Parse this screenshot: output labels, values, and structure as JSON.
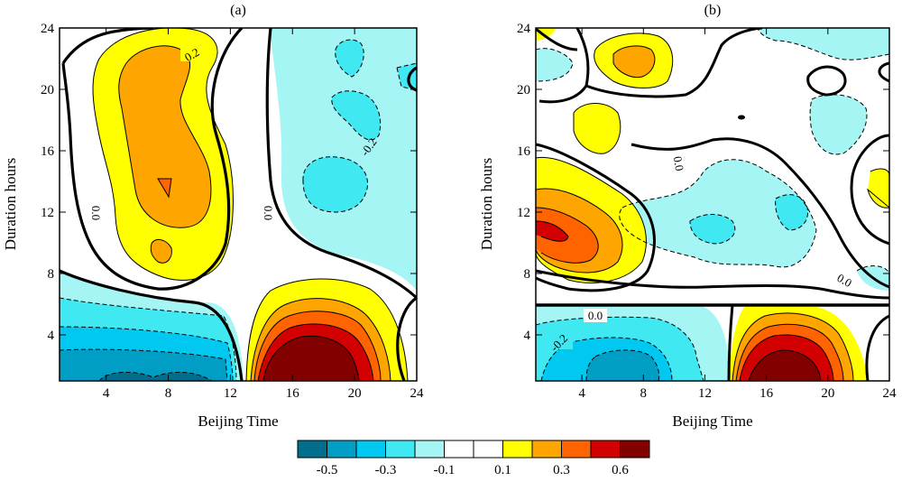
{
  "chart_data": [
    {
      "type": "contour",
      "title": "(a)",
      "xlabel": "Beijing Time",
      "ylabel": "Duration hours",
      "xlim": [
        1,
        24
      ],
      "ylim": [
        1,
        24
      ],
      "xticks": [
        4,
        8,
        12,
        16,
        20,
        24
      ],
      "yticks": [
        4,
        8,
        12,
        16,
        20,
        24
      ],
      "contour_labels": [
        {
          "text": "0.2",
          "x": 8.5,
          "y": 22.0
        },
        {
          "text": "-0.2",
          "x": 20.7,
          "y": 16.3
        },
        {
          "text": "0.0",
          "x": 3.3,
          "y": 12.0
        },
        {
          "text": "0.0",
          "x": 13.2,
          "y": 12.0
        }
      ],
      "features": [
        {
          "type": "max",
          "x": 8,
          "y": 17,
          "value": 0.3
        },
        {
          "type": "max",
          "x": 17,
          "y": 2,
          "value": 0.6
        },
        {
          "type": "min",
          "x": 6,
          "y": 2,
          "value": -0.5
        },
        {
          "type": "min",
          "x": 17,
          "y": 14,
          "value": -0.2
        }
      ]
    },
    {
      "type": "contour",
      "title": "(b)",
      "xlabel": "Beijing Time",
      "ylabel": "Duration hours",
      "xlim": [
        1,
        24
      ],
      "ylim": [
        1,
        24
      ],
      "xticks": [
        4,
        8,
        12,
        16,
        20,
        24
      ],
      "yticks": [
        4,
        8,
        12,
        16,
        20,
        24
      ],
      "reference_line_y": 6,
      "contour_labels": [
        {
          "text": "0.0",
          "x": 10.0,
          "y": 14.5
        },
        {
          "text": "0.0",
          "x": 21.6,
          "y": 7.3
        },
        {
          "text": "0.0",
          "x": 4.5,
          "y": 5.4
        },
        {
          "text": "-0.2",
          "x": 2.5,
          "y": 3.2
        }
      ],
      "features": [
        {
          "type": "max",
          "x": 3,
          "y": 11,
          "value": 0.5
        },
        {
          "type": "max",
          "x": 17,
          "y": 2,
          "value": 0.6
        },
        {
          "type": "max",
          "x": 8,
          "y": 22,
          "value": 0.2
        },
        {
          "type": "min",
          "x": 7,
          "y": 2,
          "value": -0.3
        },
        {
          "type": "min",
          "x": 16,
          "y": 12,
          "value": -0.15
        }
      ]
    }
  ],
  "colorbar": {
    "colors": [
      "#006e8c",
      "#009ec4",
      "#00c8f0",
      "#40e8f2",
      "#a6f5f5",
      "#ffffff",
      "#ffffff",
      "#ffff00",
      "#ffa500",
      "#ff6400",
      "#d20000",
      "#820000"
    ],
    "tick_labels": [
      "-0.5",
      "-0.3",
      "-0.1",
      "0.1",
      "0.3",
      "0.6"
    ]
  }
}
